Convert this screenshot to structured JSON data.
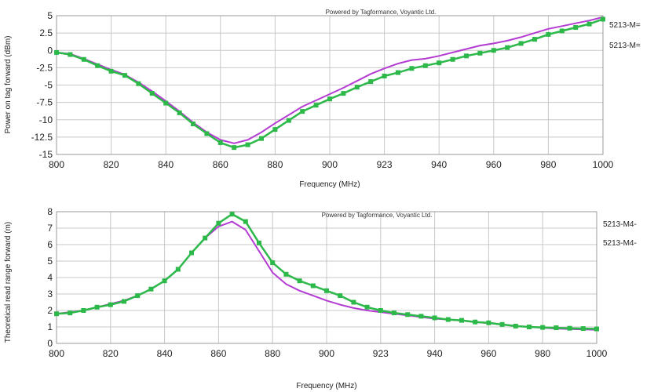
{
  "chart_data": [
    {
      "type": "line",
      "credit": "Powered by Tagformance, Voyantic Ltd.",
      "xlabel": "Frequency (MHz)",
      "ylabel": "Power on tag forward (dBm)",
      "xlim": [
        800,
        1000
      ],
      "ylim": [
        -15,
        5
      ],
      "xticks": [
        "800",
        "820",
        "840",
        "860",
        "880",
        "900",
        "923",
        "940",
        "960",
        "980",
        "1000"
      ],
      "yticks": [
        "5",
        "2.5",
        "0",
        "-2.5",
        "-5",
        "-7.5",
        "-10",
        "-12.5",
        "-15"
      ],
      "grid": true,
      "legend_position": "right",
      "x": [
        800,
        805,
        810,
        815,
        820,
        825,
        830,
        835,
        840,
        845,
        850,
        855,
        860,
        865,
        870,
        875,
        880,
        885,
        890,
        895,
        900,
        905,
        910,
        915,
        920,
        925,
        930,
        935,
        940,
        945,
        950,
        955,
        960,
        965,
        970,
        975,
        980,
        985,
        990,
        995,
        1000
      ],
      "series": [
        {
          "name": "5213-M=",
          "color": "#2db84a",
          "markers": true,
          "values": [
            -0.3,
            -0.6,
            -1.3,
            -2.2,
            -3.0,
            -3.6,
            -4.8,
            -6.2,
            -7.6,
            -9.0,
            -10.6,
            -12.0,
            -13.3,
            -14.0,
            -13.6,
            -12.7,
            -11.4,
            -10.1,
            -8.8,
            -7.9,
            -7.0,
            -6.2,
            -5.3,
            -4.5,
            -3.7,
            -3.2,
            -2.6,
            -2.2,
            -1.8,
            -1.3,
            -0.8,
            -0.4,
            0.0,
            0.4,
            1.0,
            1.6,
            2.3,
            2.8,
            3.3,
            3.8,
            4.5
          ]
        },
        {
          "name": "5213-M=",
          "color": "#b43cd2",
          "markers": false,
          "values": [
            -0.3,
            -0.5,
            -1.2,
            -2.0,
            -2.8,
            -3.5,
            -4.6,
            -5.9,
            -7.3,
            -8.8,
            -10.4,
            -11.8,
            -12.9,
            -13.4,
            -12.9,
            -11.8,
            -10.5,
            -9.3,
            -8.1,
            -7.2,
            -6.3,
            -5.4,
            -4.4,
            -3.4,
            -2.6,
            -1.9,
            -1.4,
            -1.2,
            -0.8,
            -0.3,
            0.2,
            0.7,
            1.0,
            1.4,
            1.9,
            2.5,
            3.1,
            3.5,
            3.9,
            4.3,
            4.8
          ]
        }
      ]
    },
    {
      "type": "line",
      "credit": "Powered by Tagformance, Voyantic Ltd.",
      "xlabel": "Frequency (MHz)",
      "ylabel": "Theoretical read range forward (m)",
      "xlim": [
        800,
        1000
      ],
      "ylim": [
        0,
        8
      ],
      "xticks": [
        "800",
        "820",
        "840",
        "860",
        "880",
        "900",
        "923",
        "940",
        "960",
        "980",
        "1000"
      ],
      "yticks": [
        "8",
        "7",
        "6",
        "5",
        "4",
        "3",
        "2",
        "1",
        "0"
      ],
      "grid": true,
      "legend_position": "right",
      "x": [
        800,
        805,
        810,
        815,
        820,
        825,
        830,
        835,
        840,
        845,
        850,
        855,
        860,
        865,
        870,
        875,
        880,
        885,
        890,
        895,
        900,
        905,
        910,
        915,
        920,
        925,
        930,
        935,
        940,
        945,
        950,
        955,
        960,
        965,
        970,
        975,
        980,
        985,
        990,
        995,
        1000
      ],
      "series": [
        {
          "name": "5213-M4-",
          "color": "#2db84a",
          "markers": true,
          "values": [
            1.8,
            1.85,
            2.0,
            2.2,
            2.35,
            2.55,
            2.9,
            3.3,
            3.8,
            4.5,
            5.5,
            6.4,
            7.3,
            7.85,
            7.4,
            6.1,
            4.9,
            4.2,
            3.8,
            3.5,
            3.2,
            2.9,
            2.5,
            2.2,
            2.0,
            1.85,
            1.75,
            1.65,
            1.55,
            1.45,
            1.4,
            1.3,
            1.25,
            1.15,
            1.05,
            1.0,
            0.97,
            0.95,
            0.92,
            0.9,
            0.88
          ]
        },
        {
          "name": "5213-M4-",
          "color": "#b43cd2",
          "markers": false,
          "values": [
            1.8,
            1.9,
            2.0,
            2.2,
            2.4,
            2.6,
            2.9,
            3.3,
            3.8,
            4.5,
            5.5,
            6.4,
            7.1,
            7.4,
            6.9,
            5.6,
            4.3,
            3.6,
            3.2,
            2.9,
            2.6,
            2.35,
            2.15,
            2.0,
            1.9,
            1.8,
            1.7,
            1.6,
            1.5,
            1.45,
            1.38,
            1.3,
            1.23,
            1.15,
            1.05,
            1.0,
            0.95,
            0.9,
            0.87,
            0.85,
            0.82
          ]
        }
      ]
    }
  ]
}
